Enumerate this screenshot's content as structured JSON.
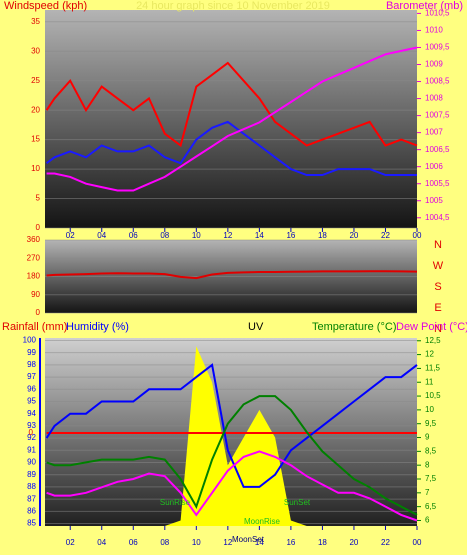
{
  "chart_data": [
    {
      "type": "line",
      "title": "24 hour graph since 10 November 2019",
      "ylabel": "Windspeed (kph)",
      "y2label": "Barometer (mb)",
      "x": [
        0.5,
        1,
        2,
        3,
        4,
        5,
        6,
        7,
        8,
        9,
        10,
        11,
        12,
        13,
        14,
        15,
        16,
        17,
        18,
        19,
        20,
        21,
        22,
        23,
        24
      ],
      "xlim": [
        0.4,
        24
      ],
      "xticks": [
        {
          "value": 2,
          "label": "02"
        },
        {
          "value": 4,
          "label": "04"
        },
        {
          "value": 6,
          "label": "06"
        },
        {
          "value": 8,
          "label": "08"
        },
        10,
        12,
        14,
        16,
        18,
        20,
        22,
        {
          "value": 24,
          "label": "00"
        }
      ],
      "ylim": [
        0,
        37
      ],
      "yticks": [
        0,
        5,
        10,
        15,
        20,
        25,
        30,
        35
      ],
      "y2lim": [
        1004.2,
        1010.6
      ],
      "y2ticks": [
        {
          "value": 1004.5,
          "label": "1004,5"
        },
        1005,
        {
          "value": 1005.5,
          "label": "1005,5"
        },
        1006,
        {
          "value": 1006.5,
          "label": "1006,5"
        },
        1007,
        {
          "value": 1007.5,
          "label": "1007,5"
        },
        1008,
        {
          "value": 1008.5,
          "label": "1008,5"
        },
        1009,
        {
          "value": 1009.5,
          "label": "1009,5"
        },
        1010,
        {
          "value": 1010.5,
          "label": "1010,5"
        }
      ],
      "grid": true,
      "series": [
        {
          "name": "Windspeed",
          "color": "#ff0000",
          "values": [
            20,
            22,
            25,
            20,
            24,
            22,
            20,
            22,
            16,
            14,
            24,
            26,
            28,
            25,
            22,
            18,
            16,
            14,
            15,
            16,
            17,
            18,
            14,
            15,
            14
          ]
        },
        {
          "name": "Average wind",
          "color": "#1a1aff",
          "values": [
            11,
            12,
            13,
            12,
            14,
            13,
            13,
            14,
            12,
            11,
            15,
            17,
            18,
            16,
            14,
            12,
            10,
            9,
            9,
            10,
            10,
            10,
            9,
            9,
            9
          ]
        },
        {
          "name": "Barometer",
          "color": "#ff00ff",
          "axis": "y2",
          "values": [
            1005.8,
            1005.8,
            1005.7,
            1005.5,
            1005.4,
            1005.3,
            1005.3,
            1005.5,
            1005.7,
            1006.0,
            1006.3,
            1006.6,
            1006.9,
            1007.1,
            1007.3,
            1007.6,
            1007.9,
            1008.2,
            1008.5,
            1008.7,
            1008.9,
            1009.1,
            1009.3,
            1009.4,
            1009.5
          ]
        }
      ]
    },
    {
      "type": "line",
      "x": [
        0.5,
        1,
        2,
        3,
        4,
        5,
        6,
        7,
        8,
        9,
        10,
        11,
        12,
        13,
        14,
        15,
        16,
        17,
        18,
        19,
        20,
        21,
        22,
        23,
        24
      ],
      "xlim": [
        0.4,
        24
      ],
      "ylim": [
        0,
        360
      ],
      "yticks": [
        0,
        90,
        180,
        270,
        360
      ],
      "grid": true,
      "compass": [
        "N",
        "W",
        "S",
        "E",
        "N"
      ],
      "series": [
        {
          "name": "Wind direction",
          "color": "#e00000",
          "values": [
            185,
            188,
            190,
            192,
            195,
            196,
            195,
            195,
            192,
            178,
            172,
            190,
            198,
            200,
            202,
            202,
            203,
            204,
            205,
            205,
            205,
            206,
            206,
            205,
            204
          ]
        }
      ]
    },
    {
      "type": "line",
      "labels": [
        "Rainfall (mm)",
        "Humidity (%)",
        "UV",
        "Temperature (°C)",
        "Dew Point (°C)"
      ],
      "x": [
        0.5,
        1,
        2,
        3,
        4,
        5,
        6,
        7,
        8,
        9,
        10,
        11,
        12,
        13,
        14,
        15,
        16,
        17,
        18,
        19,
        20,
        21,
        22,
        23,
        24
      ],
      "xlim": [
        0.4,
        24
      ],
      "xticks": [
        {
          "value": 2,
          "label": "02"
        },
        {
          "value": 4,
          "label": "04"
        },
        {
          "value": 6,
          "label": "06"
        },
        {
          "value": 8,
          "label": "08"
        },
        10,
        12,
        14,
        16,
        18,
        20,
        22,
        {
          "value": 24,
          "label": "00"
        }
      ],
      "ylim": [
        84.8,
        100.2
      ],
      "yticks": [
        85,
        86,
        87,
        88,
        89,
        90,
        91,
        92,
        93,
        94,
        95,
        96,
        97,
        98,
        99,
        100
      ],
      "y2lim": [
        5.8,
        12.6
      ],
      "y2ticks": [
        6,
        {
          "value": 6.5,
          "label": "6,5"
        },
        7,
        {
          "value": 7.5,
          "label": "7,5"
        },
        8,
        {
          "value": 8.5,
          "label": "8,5"
        },
        9,
        {
          "value": 9.5,
          "label": "9,5"
        },
        10,
        {
          "value": 10.5,
          "label": "10,5"
        },
        11,
        {
          "value": 11.5,
          "label": "11,5"
        },
        12,
        {
          "value": 12.5,
          "label": "12,5"
        }
      ],
      "rain_ticks": [
        0
      ],
      "grid": true,
      "annotations": [
        "SunRise",
        "SunSet",
        "MoonRise",
        "MoonSet"
      ],
      "series": [
        {
          "name": "UV",
          "color": "#ffff00",
          "axis": "y2",
          "values": [
            5.8,
            5.8,
            5.8,
            5.8,
            5.8,
            5.8,
            5.8,
            5.8,
            5.8,
            6.0,
            12.3,
            11.0,
            8.0,
            9.0,
            10.0,
            9.0,
            6.0,
            5.8,
            5.8,
            5.8,
            5.8,
            5.8,
            5.8,
            5.8,
            5.8
          ]
        },
        {
          "name": "Rainfall",
          "color": "#ff0000",
          "values": [
            0,
            0,
            0,
            0,
            0,
            0,
            0,
            0,
            0,
            0,
            0,
            0,
            0,
            0,
            0,
            0,
            0,
            0,
            0,
            0,
            0,
            0,
            0,
            0,
            0
          ]
        },
        {
          "name": "Humidity",
          "color": "#0000ff",
          "values": [
            92,
            93,
            94,
            94,
            95,
            95,
            95,
            96,
            96,
            96,
            97,
            98,
            91,
            88,
            88,
            89,
            91,
            92,
            93,
            94,
            95,
            96,
            97,
            97,
            98
          ]
        },
        {
          "name": "Temperature",
          "color": "#008000",
          "axis": "y2",
          "values": [
            8.1,
            8.0,
            8.0,
            8.1,
            8.2,
            8.2,
            8.2,
            8.3,
            8.2,
            7.5,
            6.5,
            8.2,
            9.5,
            10.2,
            10.5,
            10.5,
            10.0,
            9.2,
            8.5,
            8.0,
            7.5,
            7.2,
            6.8,
            6.5,
            6.2
          ]
        },
        {
          "name": "Dew Point",
          "color": "#ff00ff",
          "axis": "y2",
          "values": [
            7.0,
            6.9,
            6.9,
            7.0,
            7.2,
            7.4,
            7.5,
            7.7,
            7.6,
            7.0,
            6.2,
            7.0,
            7.8,
            8.3,
            8.5,
            8.3,
            8.0,
            7.6,
            7.3,
            7.0,
            7.0,
            6.8,
            6.5,
            6.2,
            6.0
          ]
        }
      ]
    }
  ]
}
